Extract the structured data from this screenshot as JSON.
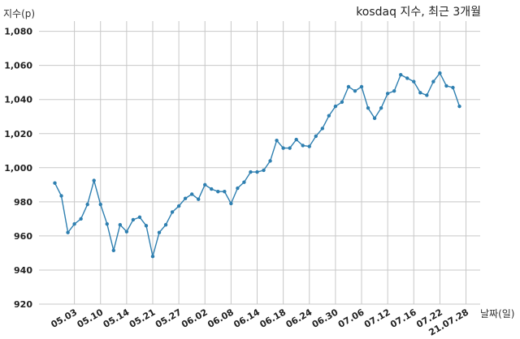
{
  "chart_data": {
    "type": "line",
    "title": "kosdaq 지수, 최근 3개월",
    "ylabel": "지수(p)",
    "xlabel": "날짜(일)",
    "ylim": [
      920,
      1086
    ],
    "yticks": [
      920,
      940,
      960,
      980,
      1000,
      1020,
      1040,
      1060,
      1080
    ],
    "ytick_labels": [
      "920",
      "940",
      "960",
      "980",
      "1,000",
      "1,020",
      "1,040",
      "1,060",
      "1,080"
    ],
    "grid": true,
    "xticks": [
      {
        "index": 3,
        "label": "05.03"
      },
      {
        "index": 7,
        "label": "05.10"
      },
      {
        "index": 11,
        "label": "05.14"
      },
      {
        "index": 15,
        "label": "05.21"
      },
      {
        "index": 19,
        "label": "05.27"
      },
      {
        "index": 23,
        "label": "06.02"
      },
      {
        "index": 27,
        "label": "06.08"
      },
      {
        "index": 31,
        "label": "06.14"
      },
      {
        "index": 35,
        "label": "06.18"
      },
      {
        "index": 39,
        "label": "06.24"
      },
      {
        "index": 43,
        "label": "06.30"
      },
      {
        "index": 47,
        "label": "07.06"
      },
      {
        "index": 51,
        "label": "07.12"
      },
      {
        "index": 55,
        "label": "07.16"
      },
      {
        "index": 59,
        "label": "07.22"
      },
      {
        "index": 63,
        "label": "21.07.28"
      }
    ],
    "series": [
      {
        "color": "#2e7fb0",
        "values": [
          991,
          983.5,
          962,
          967,
          970,
          978.5,
          992.5,
          978.5,
          967,
          951.5,
          966.5,
          962.5,
          969.5,
          971,
          966,
          948,
          962,
          966.5,
          974,
          977.5,
          982,
          984.5,
          981.5,
          990,
          987.5,
          986,
          986,
          979,
          988,
          991.5,
          997.5,
          997.5,
          998.5,
          1004,
          1016,
          1011.5,
          1011.5,
          1016.5,
          1013,
          1012.5,
          1018.5,
          1023,
          1030.5,
          1036,
          1038.5,
          1047.5,
          1045,
          1047.5,
          1035,
          1029,
          1035,
          1043.5,
          1045,
          1054.5,
          1052.5,
          1050.5,
          1044,
          1042.5,
          1050.5,
          1055.5,
          1048,
          1047,
          1036
        ]
      }
    ]
  }
}
